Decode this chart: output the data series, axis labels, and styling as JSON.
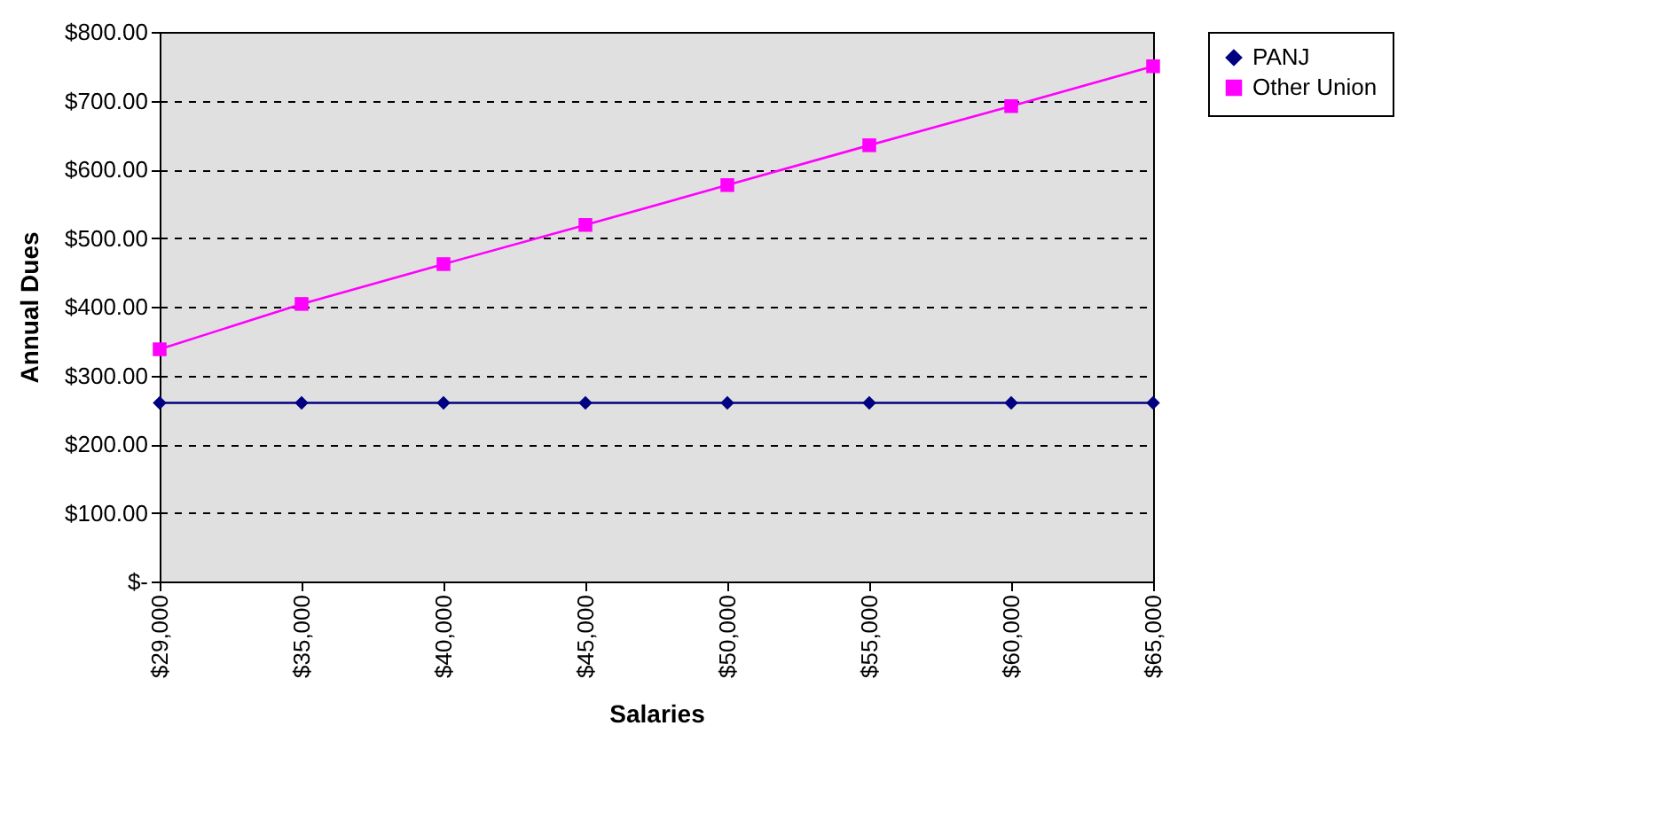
{
  "chart_data": {
    "type": "line",
    "xlabel": "Salaries",
    "ylabel": "Annual Dues",
    "categories": [
      "$29,000",
      "$35,000",
      "$40,000",
      "$45,000",
      "$50,000",
      "$55,000",
      "$60,000",
      "$65,000"
    ],
    "series": [
      {
        "name": "PANJ",
        "color": "#000080",
        "marker": "diamond",
        "values": [
          260,
          260,
          260,
          260,
          260,
          260,
          260,
          260
        ]
      },
      {
        "name": "Other Union",
        "color": "#ff00ff",
        "marker": "square",
        "values": [
          338,
          404,
          462,
          519,
          577,
          635,
          692,
          750
        ]
      }
    ],
    "ylim": [
      0,
      800
    ],
    "yticks": [
      {
        "value": 0,
        "label": "$-"
      },
      {
        "value": 100,
        "label": "$100.00"
      },
      {
        "value": 200,
        "label": "$200.00"
      },
      {
        "value": 300,
        "label": "$300.00"
      },
      {
        "value": 400,
        "label": "$400.00"
      },
      {
        "value": 500,
        "label": "$500.00"
      },
      {
        "value": 600,
        "label": "$600.00"
      },
      {
        "value": 700,
        "label": "$700.00"
      },
      {
        "value": 800,
        "label": "$800.00"
      }
    ],
    "grid": "y",
    "legend": "right"
  }
}
